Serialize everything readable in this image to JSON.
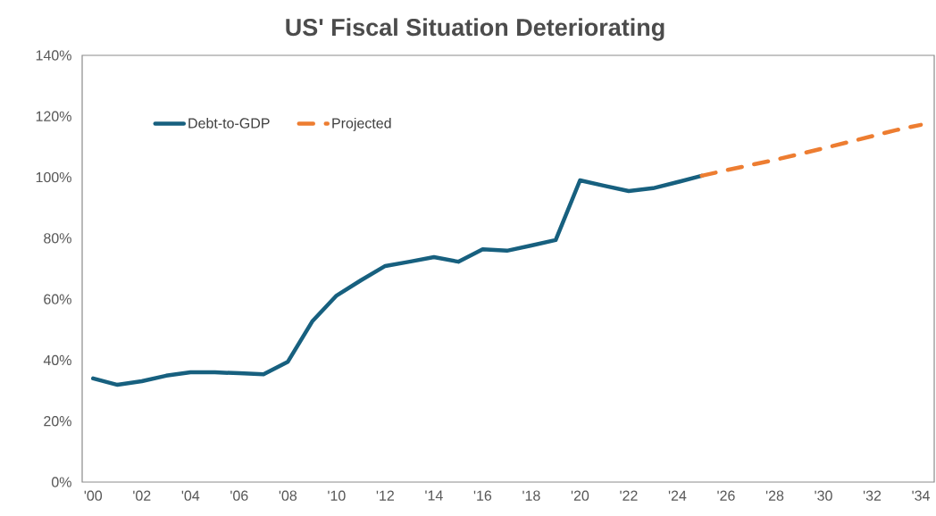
{
  "chart_data": {
    "type": "line",
    "title": "US' Fiscal Situation Deteriorating",
    "categories": [
      "'00",
      null,
      "'02",
      null,
      "'04",
      null,
      "'06",
      null,
      "'08",
      null,
      "'10",
      null,
      "'12",
      null,
      "'14",
      null,
      "'16",
      null,
      "'18",
      null,
      "'20",
      null,
      "'22",
      null,
      "'24",
      null,
      "'26",
      null,
      "'28",
      null,
      "'30",
      null,
      "'32",
      null,
      "'34"
    ],
    "series": [
      {
        "name": "Debt-to-GDP",
        "color": "#17607f",
        "line_style": "solid",
        "values": [
          34.0,
          31.9,
          33.1,
          34.9,
          36.0,
          36.0,
          35.7,
          35.4,
          39.5,
          52.7,
          61.2,
          66.2,
          70.9,
          72.3,
          73.8,
          72.3,
          76.4,
          75.9,
          77.6,
          79.4,
          99.0,
          97.2,
          95.5,
          96.4,
          98.4,
          100.5,
          null,
          null,
          null,
          null,
          null,
          null,
          null,
          null,
          null
        ]
      },
      {
        "name": "Projected",
        "color": "#ed7d31",
        "line_style": "dashed",
        "values": [
          null,
          null,
          null,
          null,
          null,
          null,
          null,
          null,
          null,
          null,
          null,
          null,
          null,
          null,
          null,
          null,
          null,
          null,
          null,
          null,
          null,
          null,
          null,
          null,
          null,
          100.5,
          102.3,
          104.0,
          105.7,
          107.6,
          109.5,
          111.5,
          113.5,
          115.5,
          117.2
        ]
      }
    ],
    "ylim": [
      0,
      140
    ],
    "yticks": [
      {
        "value": 0,
        "label": "0%"
      },
      {
        "value": 20,
        "label": "20%"
      },
      {
        "value": 40,
        "label": "40%"
      },
      {
        "value": 60,
        "label": "60%"
      },
      {
        "value": 80,
        "label": "80%"
      },
      {
        "value": 100,
        "label": "100%"
      },
      {
        "value": 120,
        "label": "120%"
      },
      {
        "value": 140,
        "label": "140%"
      }
    ],
    "grid": false,
    "legend": "top left",
    "marker": "none"
  }
}
